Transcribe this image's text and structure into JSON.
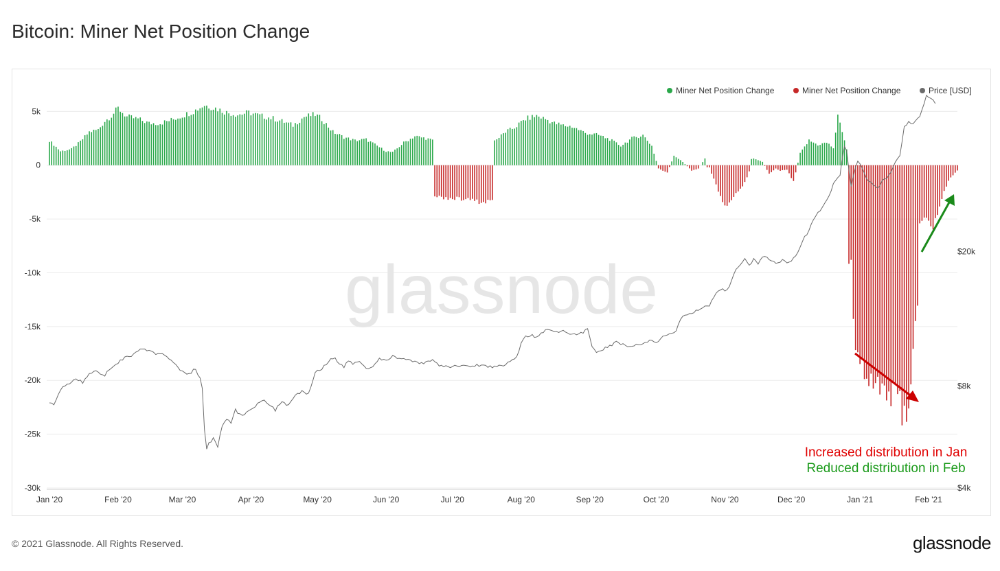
{
  "page": {
    "title": "Bitcoin: Miner Net Position Change",
    "copyright": "© 2021 Glassnode. All Rights Reserved.",
    "brand": "glassnode",
    "watermark": "glassnode"
  },
  "colors": {
    "positive": "#2aa84a",
    "negative": "#c62828",
    "price": "#6b6b6b",
    "grid": "#ececec",
    "annotation_red": "#e00000",
    "annotation_green": "#1a9a1a",
    "arrow_red": "#cc0000",
    "arrow_green": "#1a8a1a"
  },
  "chart_data": {
    "type": "bar",
    "title": "Bitcoin: Miner Net Position Change",
    "ylim_left": [
      -30000,
      7000
    ],
    "ylim_right_log": [
      4000,
      60000
    ],
    "left_ticks": [
      {
        "label": "5k",
        "value": 5000
      },
      {
        "label": "0",
        "value": 0
      },
      {
        "label": "-5k",
        "value": -5000
      },
      {
        "label": "-10k",
        "value": -10000
      },
      {
        "label": "-15k",
        "value": -15000
      },
      {
        "label": "-20k",
        "value": -20000
      },
      {
        "label": "-25k",
        "value": -25000
      },
      {
        "label": "-30k",
        "value": -30000
      }
    ],
    "right_ticks": [
      {
        "label": "$20k",
        "value": 20000
      },
      {
        "label": "$8k",
        "value": 8000
      },
      {
        "label": "$4k",
        "value": 4000
      }
    ],
    "x_ticks": [
      {
        "label": "Jan '20",
        "day": 0
      },
      {
        "label": "Feb '20",
        "day": 31
      },
      {
        "label": "Mar '20",
        "day": 60
      },
      {
        "label": "Apr '20",
        "day": 91
      },
      {
        "label": "May '20",
        "day": 121
      },
      {
        "label": "Jun '20",
        "day": 152
      },
      {
        "label": "Jul '20",
        "day": 182
      },
      {
        "label": "Aug '20",
        "day": 213
      },
      {
        "label": "Sep '20",
        "day": 244
      },
      {
        "label": "Oct '20",
        "day": 274
      },
      {
        "label": "Nov '20",
        "day": 305
      },
      {
        "label": "Dec '20",
        "day": 335
      },
      {
        "label": "Jan '21",
        "day": 366
      },
      {
        "label": "Feb '21",
        "day": 397
      }
    ],
    "legend": [
      {
        "label": "Miner Net Position Change",
        "color": "#2aa84a"
      },
      {
        "label": "Miner Net Position Change",
        "color": "#c62828"
      },
      {
        "label": "Price [USD]",
        "color": "#6b6b6b"
      }
    ],
    "legend_position": "top-right",
    "net_position_anchors": [
      [
        0,
        2300
      ],
      [
        5,
        1300
      ],
      [
        10,
        1500
      ],
      [
        14,
        2200
      ],
      [
        18,
        3100
      ],
      [
        22,
        3300
      ],
      [
        25,
        4100
      ],
      [
        28,
        4600
      ],
      [
        31,
        5300
      ],
      [
        35,
        4500
      ],
      [
        40,
        4300
      ],
      [
        45,
        3900
      ],
      [
        50,
        3900
      ],
      [
        55,
        4200
      ],
      [
        60,
        4600
      ],
      [
        65,
        5000
      ],
      [
        70,
        5600
      ],
      [
        75,
        5300
      ],
      [
        80,
        4900
      ],
      [
        85,
        4700
      ],
      [
        90,
        4900
      ],
      [
        95,
        4600
      ],
      [
        100,
        4400
      ],
      [
        105,
        4100
      ],
      [
        110,
        3700
      ],
      [
        115,
        4500
      ],
      [
        120,
        4700
      ],
      [
        123,
        4300
      ],
      [
        128,
        3100
      ],
      [
        133,
        2600
      ],
      [
        138,
        2300
      ],
      [
        143,
        2400
      ],
      [
        148,
        1800
      ],
      [
        152,
        1300
      ],
      [
        155,
        1200
      ],
      [
        160,
        2100
      ],
      [
        165,
        2700
      ],
      [
        170,
        2500
      ],
      [
        173,
        2300
      ],
      [
        174,
        -2900
      ],
      [
        178,
        -3000
      ],
      [
        183,
        -3100
      ],
      [
        190,
        -3200
      ],
      [
        196,
        -3500
      ],
      [
        200,
        -3200
      ],
      [
        202,
        2400
      ],
      [
        206,
        3100
      ],
      [
        210,
        3500
      ],
      [
        215,
        4300
      ],
      [
        220,
        4600
      ],
      [
        224,
        4300
      ],
      [
        228,
        3900
      ],
      [
        232,
        3700
      ],
      [
        236,
        3600
      ],
      [
        242,
        3000
      ],
      [
        248,
        2800
      ],
      [
        253,
        2400
      ],
      [
        258,
        1800
      ],
      [
        263,
        2500
      ],
      [
        268,
        2800
      ],
      [
        272,
        1800
      ],
      [
        275,
        -300
      ],
      [
        279,
        -700
      ],
      [
        282,
        900
      ],
      [
        286,
        300
      ],
      [
        290,
        -500
      ],
      [
        293,
        -300
      ],
      [
        296,
        600
      ],
      [
        298,
        -200
      ],
      [
        300,
        -1300
      ],
      [
        304,
        -3400
      ],
      [
        306,
        -3900
      ],
      [
        309,
        -2800
      ],
      [
        313,
        -2000
      ],
      [
        316,
        -600
      ],
      [
        318,
        600
      ],
      [
        322,
        300
      ],
      [
        325,
        -800
      ],
      [
        328,
        -300
      ],
      [
        330,
        -500
      ],
      [
        333,
        -400
      ],
      [
        336,
        -1500
      ],
      [
        339,
        1100
      ],
      [
        343,
        2300
      ],
      [
        347,
        1900
      ],
      [
        351,
        2100
      ],
      [
        354,
        1600
      ],
      [
        356,
        4500
      ],
      [
        358,
        3200
      ],
      [
        360,
        1500
      ],
      [
        362,
        -8800
      ],
      [
        363,
        -15000
      ],
      [
        365,
        -18200
      ],
      [
        370,
        -19500
      ],
      [
        375,
        -20300
      ],
      [
        380,
        -21300
      ],
      [
        384,
        -22000
      ],
      [
        385,
        -23300
      ],
      [
        388,
        -22200
      ],
      [
        390,
        -17000
      ],
      [
        391,
        -15000
      ],
      [
        392,
        -13500
      ],
      [
        393,
        -5600
      ],
      [
        396,
        -4800
      ],
      [
        399,
        -5800
      ],
      [
        401,
        -4500
      ],
      [
        404,
        -2400
      ],
      [
        407,
        -1100
      ],
      [
        410,
        -500
      ]
    ],
    "price_anchors": [
      [
        0,
        7200
      ],
      [
        2,
        7000
      ],
      [
        5,
        7800
      ],
      [
        8,
        8100
      ],
      [
        12,
        8400
      ],
      [
        15,
        8200
      ],
      [
        18,
        8700
      ],
      [
        21,
        8900
      ],
      [
        25,
        8600
      ],
      [
        28,
        9100
      ],
      [
        31,
        9400
      ],
      [
        34,
        9700
      ],
      [
        36,
        9800
      ],
      [
        38,
        9900
      ],
      [
        40,
        10200
      ],
      [
        42,
        10300
      ],
      [
        44,
        10200
      ],
      [
        46,
        10100
      ],
      [
        48,
        9900
      ],
      [
        51,
        10000
      ],
      [
        54,
        9700
      ],
      [
        57,
        9200
      ],
      [
        60,
        8800
      ],
      [
        63,
        8700
      ],
      [
        66,
        9000
      ],
      [
        68,
        8400
      ],
      [
        69,
        7900
      ],
      [
        70,
        6000
      ],
      [
        71,
        5200
      ],
      [
        72,
        5400
      ],
      [
        74,
        5600
      ],
      [
        76,
        5300
      ],
      [
        78,
        6100
      ],
      [
        80,
        6400
      ],
      [
        82,
        6200
      ],
      [
        84,
        6800
      ],
      [
        87,
        6500
      ],
      [
        90,
        6800
      ],
      [
        93,
        7000
      ],
      [
        96,
        7300
      ],
      [
        99,
        7100
      ],
      [
        102,
        6800
      ],
      [
        105,
        7200
      ],
      [
        108,
        7000
      ],
      [
        111,
        7500
      ],
      [
        114,
        7700
      ],
      [
        117,
        7600
      ],
      [
        120,
        8800
      ],
      [
        122,
        8900
      ],
      [
        125,
        9300
      ],
      [
        127,
        9600
      ],
      [
        129,
        9700
      ],
      [
        131,
        9300
      ],
      [
        133,
        9100
      ],
      [
        135,
        9500
      ],
      [
        137,
        9300
      ],
      [
        140,
        9500
      ],
      [
        143,
        9000
      ],
      [
        146,
        9100
      ],
      [
        149,
        9600
      ],
      [
        152,
        9500
      ],
      [
        155,
        9800
      ],
      [
        158,
        9700
      ],
      [
        161,
        9600
      ],
      [
        164,
        9450
      ],
      [
        167,
        9300
      ],
      [
        170,
        9400
      ],
      [
        173,
        9600
      ],
      [
        176,
        9200
      ],
      [
        180,
        9100
      ],
      [
        185,
        9200
      ],
      [
        190,
        9150
      ],
      [
        195,
        9250
      ],
      [
        200,
        9100
      ],
      [
        205,
        9250
      ],
      [
        208,
        9500
      ],
      [
        211,
        9700
      ],
      [
        214,
        11100
      ],
      [
        217,
        11300
      ],
      [
        220,
        11200
      ],
      [
        223,
        11600
      ],
      [
        226,
        11800
      ],
      [
        229,
        11500
      ],
      [
        232,
        11700
      ],
      [
        235,
        11400
      ],
      [
        238,
        11300
      ],
      [
        241,
        11500
      ],
      [
        243,
        11800
      ],
      [
        245,
        10400
      ],
      [
        247,
        10100
      ],
      [
        250,
        10300
      ],
      [
        253,
        10500
      ],
      [
        256,
        10800
      ],
      [
        259,
        10600
      ],
      [
        262,
        10400
      ],
      [
        265,
        10700
      ],
      [
        268,
        10600
      ],
      [
        271,
        10900
      ],
      [
        274,
        10700
      ],
      [
        277,
        11200
      ],
      [
        280,
        11400
      ],
      [
        283,
        11700
      ],
      [
        286,
        12900
      ],
      [
        289,
        13100
      ],
      [
        292,
        13300
      ],
      [
        295,
        13600
      ],
      [
        298,
        13900
      ],
      [
        301,
        15000
      ],
      [
        303,
        15500
      ],
      [
        306,
        15300
      ],
      [
        308,
        16300
      ],
      [
        310,
        17700
      ],
      [
        312,
        18300
      ],
      [
        314,
        18900
      ],
      [
        316,
        18100
      ],
      [
        318,
        19000
      ],
      [
        320,
        18200
      ],
      [
        322,
        19300
      ],
      [
        324,
        19200
      ],
      [
        326,
        18800
      ],
      [
        328,
        18400
      ],
      [
        331,
        18900
      ],
      [
        334,
        18500
      ],
      [
        337,
        19300
      ],
      [
        340,
        21500
      ],
      [
        343,
        23100
      ],
      [
        346,
        25500
      ],
      [
        349,
        27000
      ],
      [
        352,
        29000
      ],
      [
        354,
        31500
      ],
      [
        356,
        33300
      ],
      [
        357,
        33800
      ],
      [
        358,
        38000
      ],
      [
        359,
        41000
      ],
      [
        360,
        39500
      ],
      [
        361,
        35000
      ],
      [
        362,
        31000
      ],
      [
        363,
        33700
      ],
      [
        364,
        35500
      ],
      [
        365,
        37000
      ],
      [
        366,
        36500
      ],
      [
        368,
        34000
      ],
      [
        370,
        32000
      ],
      [
        372,
        31500
      ],
      [
        374,
        30500
      ],
      [
        376,
        32500
      ],
      [
        378,
        33000
      ],
      [
        380,
        34500
      ],
      [
        382,
        37000
      ],
      [
        384,
        38500
      ],
      [
        386,
        46400
      ],
      [
        388,
        48000
      ],
      [
        390,
        47500
      ],
      [
        392,
        49000
      ],
      [
        394,
        52000
      ],
      [
        396,
        57500
      ],
      [
        398,
        56300
      ],
      [
        400,
        55000
      ]
    ],
    "days": 411
  },
  "annotations": {
    "line1": "Increased distribution in Jan",
    "line2": "Reduced distribution in Feb"
  }
}
